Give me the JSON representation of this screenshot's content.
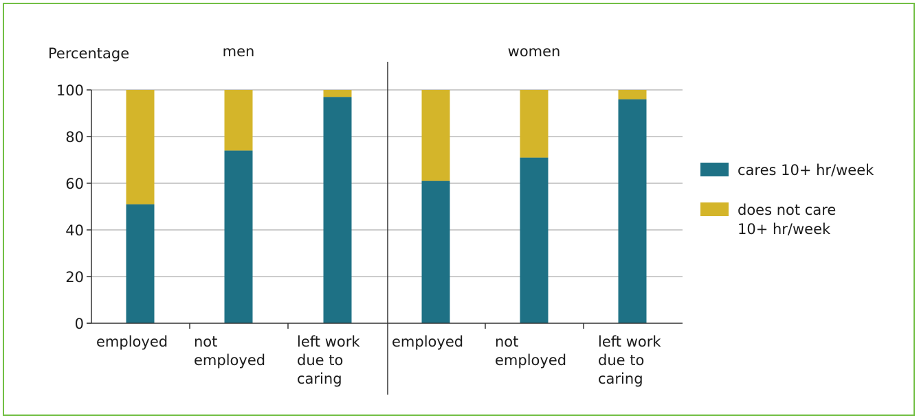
{
  "chart_data": {
    "type": "bar",
    "stacked": true,
    "ylabel": "Percentage",
    "ylim": [
      0,
      100
    ],
    "yticks": [
      0,
      20,
      40,
      60,
      80,
      100
    ],
    "grid": true,
    "legend_position": "right",
    "groups": [
      {
        "label": "men",
        "categories": [
          [
            "employed"
          ],
          [
            "not",
            "employed"
          ],
          [
            "left work",
            "due to",
            "caring"
          ]
        ]
      },
      {
        "label": "women",
        "categories": [
          [
            "employed"
          ],
          [
            "not",
            "employed"
          ],
          [
            "left work",
            "due to",
            "caring"
          ]
        ]
      }
    ],
    "series": [
      {
        "name": "cares 10+ hr/week",
        "legend_lines": [
          "cares 10+ hr/week"
        ],
        "color": "#1e7185",
        "values": [
          51,
          74,
          97,
          61,
          71,
          96
        ]
      },
      {
        "name": "does not care 10+ hr/week",
        "legend_lines": [
          "does not care",
          "10+ hr/week"
        ],
        "color": "#d4b52a",
        "values": [
          49,
          26,
          3,
          39,
          29,
          4
        ]
      }
    ]
  },
  "colors": {
    "frame": "#72bf44",
    "grid": "#999999",
    "axis": "#333333"
  }
}
